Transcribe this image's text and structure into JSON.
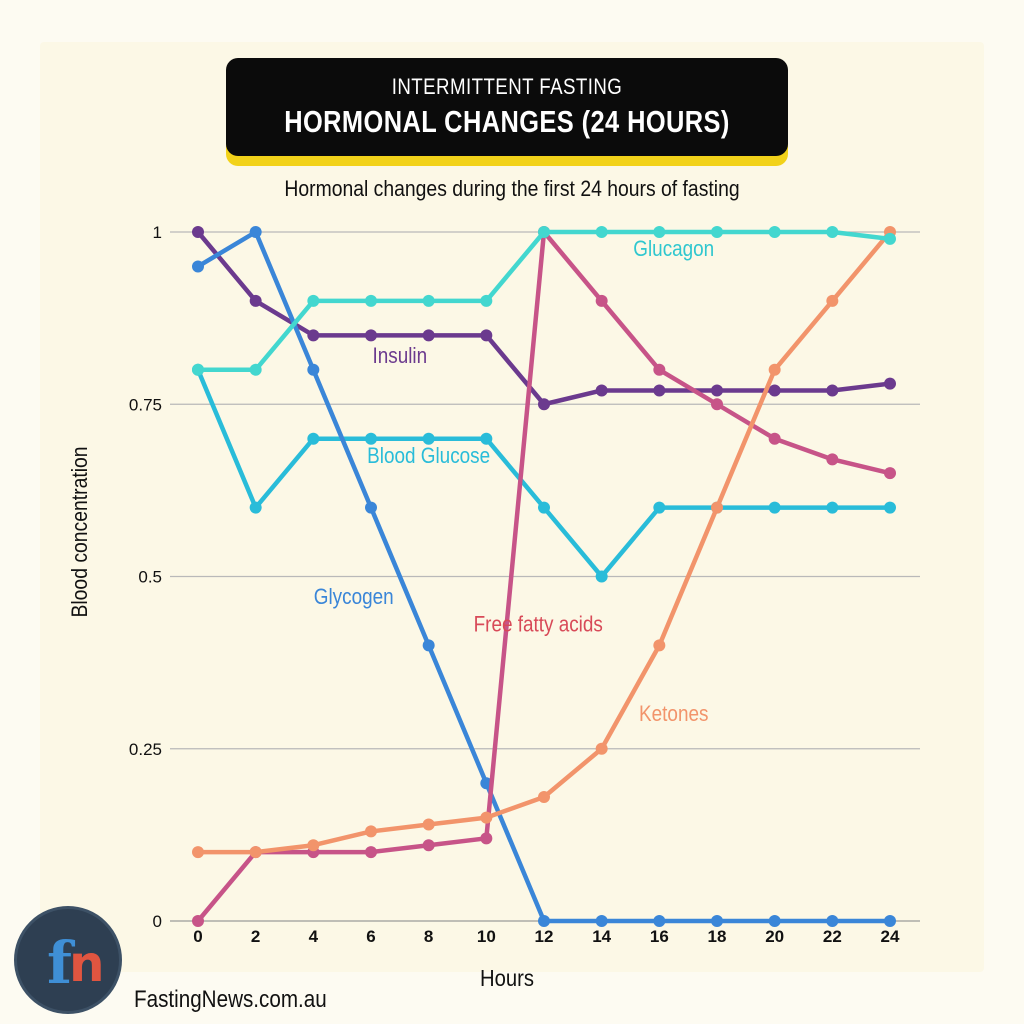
{
  "header": {
    "title_top": "INTERMITTENT FASTING",
    "title_main": "HORMONAL CHANGES (24 HOURS)",
    "subtitle": "Hormonal changes during the first 24 hours of fasting",
    "accent_color": "#f2d21a"
  },
  "chart_data": {
    "type": "line",
    "title": "Hormonal changes during the first 24 hours of fasting",
    "xlabel": "Hours",
    "ylabel": "Blood  concentration",
    "x": [
      0,
      2,
      4,
      6,
      8,
      10,
      12,
      14,
      16,
      18,
      20,
      22,
      24
    ],
    "xticks": [
      "0",
      "2",
      "4",
      "6",
      "8",
      "10",
      "12",
      "14",
      "16",
      "18",
      "20",
      "22",
      "24"
    ],
    "yticks": [
      {
        "value": 0,
        "label": "0"
      },
      {
        "value": 0.25,
        "label": "0.25"
      },
      {
        "value": 0.5,
        "label": "0.5"
      },
      {
        "value": 0.75,
        "label": "0.75"
      },
      {
        "value": 1,
        "label": "1"
      }
    ],
    "xlim": [
      0,
      24
    ],
    "ylim": [
      0,
      1
    ],
    "grid": true,
    "series": [
      {
        "name": "Insulin",
        "color": "#6b3a8e",
        "label_at": [
          7,
          0.81
        ],
        "values": [
          1,
          0.9,
          0.85,
          0.85,
          0.85,
          0.85,
          0.75,
          0.77,
          0.77,
          0.77,
          0.77,
          0.77,
          0.78
        ]
      },
      {
        "name": "Blood Glucose",
        "color": "#29bcd9",
        "label_at": [
          8,
          0.665
        ],
        "values": [
          0.8,
          0.6,
          0.7,
          0.7,
          0.7,
          0.7,
          0.6,
          0.5,
          0.6,
          0.6,
          0.6,
          0.6,
          0.6
        ]
      },
      {
        "name": "Glycogen",
        "color": "#3a86d8",
        "label_at": [
          5.4,
          0.46
        ],
        "values": [
          0.95,
          1,
          0.8,
          0.6,
          0.4,
          0.2,
          0,
          0,
          0,
          0,
          0,
          0,
          0
        ]
      },
      {
        "name": "Free  fatty acids",
        "color": "#c75488",
        "text_color": "#d84a58",
        "label_at": [
          11.8,
          0.42
        ],
        "values": [
          0,
          0.1,
          0.1,
          0.1,
          0.11,
          0.12,
          1,
          0.9,
          0.8,
          0.75,
          0.7,
          0.67,
          0.65
        ]
      },
      {
        "name": "Ketones",
        "color": "#f2946b",
        "label_at": [
          16.5,
          0.29
        ],
        "values": [
          0.1,
          0.1,
          0.11,
          0.13,
          0.14,
          0.15,
          0.18,
          0.25,
          0.4,
          0.6,
          0.8,
          0.9,
          1
        ]
      },
      {
        "name": "Glucagon",
        "color": "#43d7cf",
        "text_color": "#2fc7cf",
        "label_at": [
          16.5,
          0.965
        ],
        "values": [
          0.8,
          0.8,
          0.9,
          0.9,
          0.9,
          0.9,
          1,
          1,
          1,
          1,
          1,
          1,
          0.99
        ]
      }
    ]
  },
  "footer": {
    "site": "FastingNews.com.au",
    "logo_letters": "fn"
  }
}
